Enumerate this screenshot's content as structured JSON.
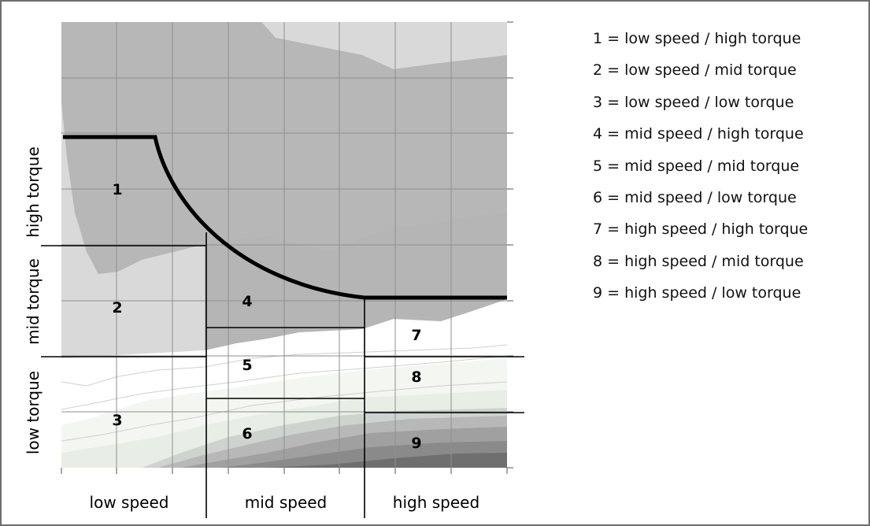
{
  "zone_labels": [
    "1",
    "2",
    "3",
    "4",
    "5",
    "6",
    "7",
    "8",
    "9"
  ],
  "axis": {
    "x_bands": [
      "low speed",
      "mid speed",
      "high speed"
    ],
    "y_bands": [
      "low torque",
      "mid torque",
      "high torque"
    ]
  },
  "legend": [
    "1 = low speed / high torque",
    "2 = low speed / mid torque",
    "3 = low speed / low torque",
    "4 = mid speed / high torque",
    "5 = mid speed / mid torque",
    "6 = mid speed / low torque",
    "7 = high speed / high torque",
    "8 = high speed / mid torque",
    "9 = high speed / low torque"
  ],
  "colors": {
    "background": "#ffffff",
    "frame": "#6e6e6e",
    "region_light": "#d8d8d8",
    "region_mid": "#b4b4b4",
    "region_pale": "#f6f8f4",
    "band_dark": "#7a7a7a",
    "grid": "#9a9a9a",
    "boundary": "#000000"
  },
  "icons": []
}
